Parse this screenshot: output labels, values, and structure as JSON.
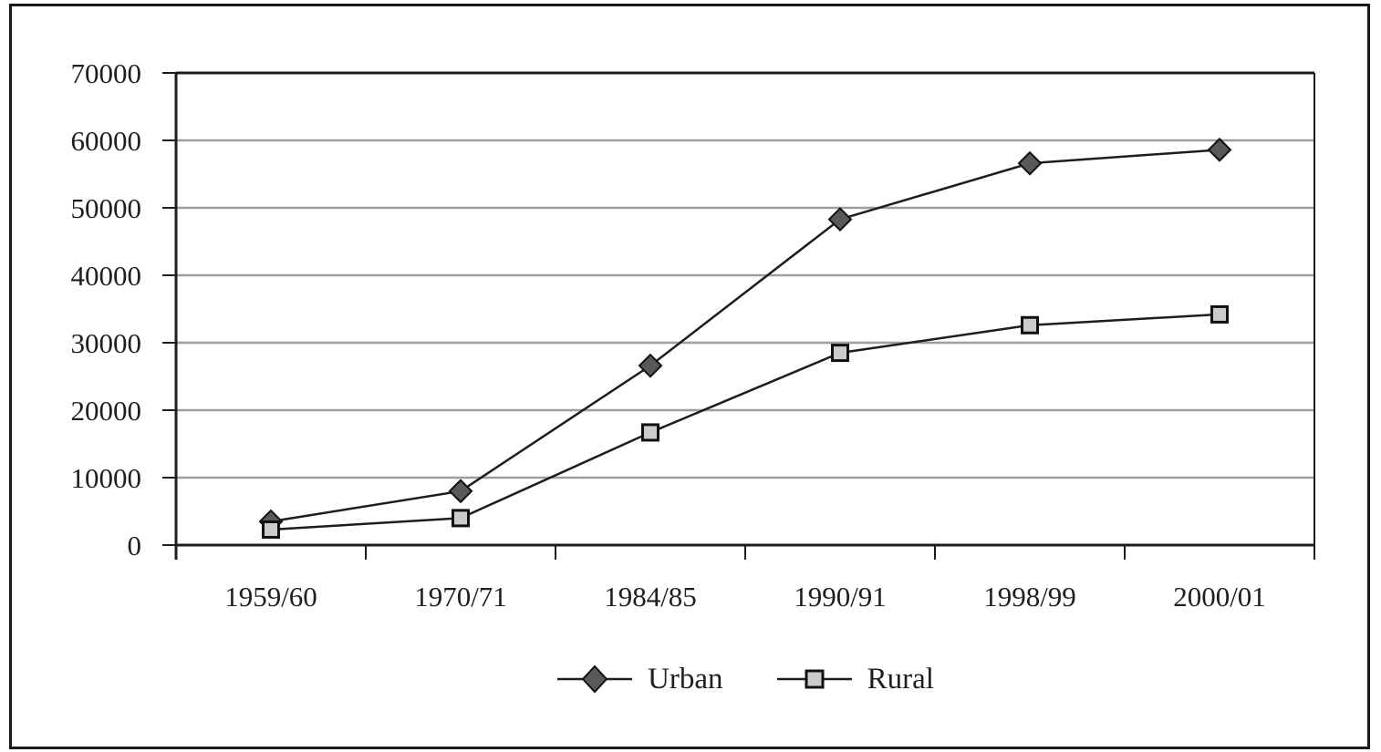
{
  "figure": {
    "background": "#ffffff",
    "frame_color": "#1a1a1a"
  },
  "chart_data": {
    "type": "line",
    "title": "",
    "xlabel": "",
    "ylabel": "",
    "categories": [
      "1959/60",
      "1970/71",
      "1984/85",
      "1990/91",
      "1998/99",
      "2000/01"
    ],
    "series": [
      {
        "name": "Urban",
        "marker": "diamond",
        "marker_fill": "#595959",
        "marker_stroke": "#111111",
        "line_color": "#1d1d1d",
        "values": [
          3500,
          8000,
          26600,
          48300,
          56600,
          58600
        ]
      },
      {
        "name": "Rural",
        "marker": "square",
        "marker_fill": "#cbcbcb",
        "marker_stroke": "#111111",
        "line_color": "#1d1d1d",
        "values": [
          2300,
          4000,
          16700,
          28500,
          32600,
          34200
        ]
      }
    ],
    "ylim": [
      0,
      70000
    ],
    "ytick_step": 10000,
    "ytick_labels": [
      "0",
      "10000",
      "20000",
      "30000",
      "40000",
      "50000",
      "60000",
      "70000"
    ],
    "grid": "horizontal-gridlines",
    "gridline_color": "#9e9e9e",
    "axis_color": "#1d1d1d",
    "text_color": "#1f1f1f",
    "legend_position": "bottom-center"
  }
}
